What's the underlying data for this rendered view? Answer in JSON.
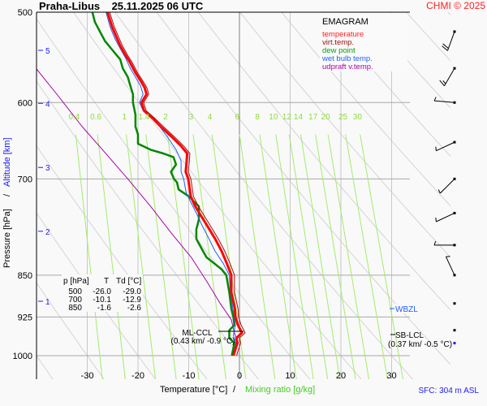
{
  "chart_data": {
    "type": "line",
    "subtype": "emagram",
    "title": "Praha-Libus    25.11.2025 06 UTC",
    "station": "Praha-Libus",
    "datetime": "25.11.2025 06 UTC",
    "copyright": "CHMI © 2025",
    "diagram_label": "EMAGRAM",
    "xlabel": "Temperature [°C]",
    "xlabel_sep": "/",
    "xlabel2": "Mixing ratio [g/kg]",
    "ylabel": "Pressure [hPa]",
    "ylabel_sep": "/",
    "ylabel2": "Altitude [km]",
    "xlim": [
      -38,
      39
    ],
    "ylim": [
      1050,
      500
    ],
    "yscale": "log",
    "grid": true,
    "x_ticks": [
      -30,
      -20,
      -10,
      0,
      10,
      20,
      30
    ],
    "y_ticks": [
      500,
      600,
      700,
      850,
      925,
      1000
    ],
    "altitude_ticks": [
      {
        "km": "5",
        "p": 540
      },
      {
        "km": "4",
        "p": 601
      },
      {
        "km": "3",
        "p": 684
      },
      {
        "km": "2",
        "p": 778
      },
      {
        "km": "1",
        "p": 896
      }
    ],
    "mixing_ratio_labels": [
      "0.4",
      "0.6",
      "1",
      "1.4",
      "2",
      "3",
      "4",
      "6",
      "8",
      "10",
      "12",
      "14",
      "17",
      "20",
      "25",
      "30"
    ],
    "mixing_ratio_values": [
      0.4,
      0.6,
      1,
      1.4,
      2,
      3,
      4,
      6,
      8,
      10,
      12,
      14,
      17,
      20,
      25,
      30
    ],
    "legend": [
      {
        "name": "temperature",
        "color": "#ff0000"
      },
      {
        "name": "virt.temp.",
        "color": "#a01010"
      },
      {
        "name": "dew point",
        "color": "#008800"
      },
      {
        "name": "wet bulb temp.",
        "color": "#2060ff"
      },
      {
        "name": "udpraft v.temp.",
        "color": "#aa00aa"
      }
    ],
    "series": [
      {
        "name": "temperature",
        "color": "#ff0000",
        "points": [
          [
            -1.2,
            1000
          ],
          [
            -0.4,
            975
          ],
          [
            -0.6,
            965
          ],
          [
            0.5,
            955
          ],
          [
            -0.3,
            940
          ],
          [
            -0.8,
            925
          ],
          [
            -0.9,
            910
          ],
          [
            -1.6,
            880
          ],
          [
            -1.6,
            850
          ],
          [
            -2.5,
            830
          ],
          [
            -3.5,
            810
          ],
          [
            -4.8,
            790
          ],
          [
            -6.3,
            770
          ],
          [
            -7.5,
            755
          ],
          [
            -8.7,
            740
          ],
          [
            -9.6,
            725
          ],
          [
            -10.1,
            700
          ],
          [
            -10.6,
            690
          ],
          [
            -10.4,
            675
          ],
          [
            -10.3,
            665
          ],
          [
            -11.5,
            655
          ],
          [
            -13.5,
            642
          ],
          [
            -15.5,
            630
          ],
          [
            -17.0,
            620
          ],
          [
            -18.8,
            610
          ],
          [
            -19.3,
            600
          ],
          [
            -18.3,
            590
          ],
          [
            -18.7,
            582
          ],
          [
            -19.4,
            575
          ],
          [
            -20.5,
            565
          ],
          [
            -21.7,
            552
          ],
          [
            -22.5,
            545
          ],
          [
            -23.5,
            535
          ],
          [
            -24.3,
            525
          ],
          [
            -25.1,
            515
          ],
          [
            -26.0,
            500
          ]
        ]
      },
      {
        "name": "virt.temp.",
        "color": "#a01010",
        "points": [
          [
            -0.9,
            1000
          ],
          [
            -0.1,
            975
          ],
          [
            -0.3,
            965
          ],
          [
            0.8,
            955
          ],
          [
            0.0,
            940
          ],
          [
            -0.5,
            925
          ],
          [
            -0.6,
            910
          ],
          [
            -1.3,
            880
          ],
          [
            -1.3,
            850
          ],
          [
            -2.2,
            830
          ],
          [
            -3.2,
            810
          ],
          [
            -4.5,
            790
          ],
          [
            -6.0,
            770
          ],
          [
            -7.2,
            755
          ],
          [
            -8.4,
            740
          ],
          [
            -9.4,
            725
          ],
          [
            -9.9,
            700
          ],
          [
            -10.4,
            690
          ],
          [
            -10.2,
            675
          ],
          [
            -10.1,
            665
          ],
          [
            -11.3,
            655
          ],
          [
            -13.3,
            642
          ],
          [
            -15.3,
            630
          ],
          [
            -16.9,
            620
          ],
          [
            -18.7,
            610
          ],
          [
            -19.2,
            600
          ],
          [
            -18.2,
            590
          ],
          [
            -18.6,
            582
          ],
          [
            -19.3,
            575
          ],
          [
            -20.4,
            565
          ],
          [
            -21.6,
            552
          ],
          [
            -22.4,
            545
          ],
          [
            -23.4,
            535
          ],
          [
            -24.2,
            525
          ],
          [
            -25.0,
            515
          ],
          [
            -25.9,
            500
          ]
        ]
      },
      {
        "name": "dew point",
        "color": "#008800",
        "points": [
          [
            -1.5,
            1000
          ],
          [
            -1.0,
            975
          ],
          [
            -2.0,
            965
          ],
          [
            -2.0,
            950
          ],
          [
            -1.0,
            940
          ],
          [
            -1.2,
            925
          ],
          [
            -1.6,
            910
          ],
          [
            -2.0,
            880
          ],
          [
            -2.6,
            850
          ],
          [
            -3.5,
            840
          ],
          [
            -5.0,
            830
          ],
          [
            -6.5,
            820
          ],
          [
            -7.5,
            805
          ],
          [
            -8.5,
            790
          ],
          [
            -8.5,
            775
          ],
          [
            -8.0,
            760
          ],
          [
            -8.0,
            748
          ],
          [
            -8.0,
            740
          ],
          [
            -10.0,
            725
          ],
          [
            -12.0,
            715
          ],
          [
            -12.3,
            705
          ],
          [
            -12.9,
            700
          ],
          [
            -13.5,
            690
          ],
          [
            -12.5,
            680
          ],
          [
            -13.0,
            670
          ],
          [
            -15.0,
            665
          ],
          [
            -17.5,
            660
          ],
          [
            -20.0,
            652
          ],
          [
            -20.0,
            640
          ],
          [
            -20.5,
            630
          ],
          [
            -20.5,
            615
          ],
          [
            -21.0,
            600
          ],
          [
            -21.0,
            590
          ],
          [
            -21.5,
            580
          ],
          [
            -22.0,
            570
          ],
          [
            -23.0,
            560
          ],
          [
            -23.5,
            550
          ],
          [
            -25.0,
            540
          ],
          [
            -26.5,
            530
          ],
          [
            -27.5,
            520
          ],
          [
            -28.5,
            510
          ],
          [
            -29.0,
            500
          ]
        ]
      },
      {
        "name": "wet bulb temp.",
        "color": "#2060ff",
        "points": [
          [
            -1.3,
            1000
          ],
          [
            -0.7,
            975
          ],
          [
            -1.2,
            960
          ],
          [
            -0.8,
            940
          ],
          [
            -1.0,
            925
          ],
          [
            -1.3,
            910
          ],
          [
            -1.8,
            880
          ],
          [
            -2.0,
            850
          ],
          [
            -3.2,
            830
          ],
          [
            -4.8,
            810
          ],
          [
            -6.0,
            790
          ],
          [
            -7.3,
            770
          ],
          [
            -8.5,
            750
          ],
          [
            -9.5,
            735
          ],
          [
            -10.5,
            720
          ],
          [
            -11.0,
            700
          ],
          [
            -11.5,
            690
          ],
          [
            -11.5,
            675
          ],
          [
            -12.5,
            660
          ],
          [
            -14.0,
            645
          ],
          [
            -15.7,
            630
          ],
          [
            -17.2,
            620
          ],
          [
            -19.0,
            610
          ],
          [
            -19.7,
            600
          ],
          [
            -19.0,
            590
          ],
          [
            -19.5,
            580
          ],
          [
            -20.5,
            570
          ],
          [
            -21.5,
            560
          ],
          [
            -22.5,
            548
          ],
          [
            -23.5,
            538
          ],
          [
            -24.5,
            528
          ],
          [
            -25.5,
            515
          ],
          [
            -26.3,
            500
          ]
        ]
      },
      {
        "name": "udpraft v.temp.",
        "color": "#aa00aa",
        "points": [
          [
            -0.3,
            975
          ],
          [
            -1.0,
            955
          ],
          [
            -1.6,
            930
          ],
          [
            -3.8,
            900
          ],
          [
            -6.5,
            860
          ],
          [
            -9.5,
            820
          ],
          [
            -13.5,
            780
          ],
          [
            -17.5,
            740
          ],
          [
            -22.0,
            700
          ],
          [
            -27.0,
            660
          ],
          [
            -31.0,
            630
          ],
          [
            -36.0,
            590
          ],
          [
            -41.5,
            550
          ],
          [
            -47.0,
            515
          ],
          [
            -49.5,
            500
          ]
        ]
      }
    ],
    "table": {
      "headers": [
        "p [hPa]",
        "T",
        "Td [°C]"
      ],
      "rows": [
        [
          "500",
          "-26.0",
          "-29.0"
        ],
        [
          "700",
          "-10.1",
          "-12.9"
        ],
        [
          "850",
          "-1.6",
          "-2.6"
        ]
      ]
    },
    "annotations": [
      {
        "label": "ML-CCL",
        "detail": "(0.43 km/ -0.9 °C)",
        "p": 957
      },
      {
        "label": "WBZL",
        "p": 900,
        "color": "#2060ff"
      },
      {
        "label": "SB-LCL",
        "detail": "(0.37 km/ -0.5 °C)",
        "p": 962
      }
    ],
    "wind_barbs": [
      {
        "p": 520,
        "direction_deg": 200,
        "speed_kt": 20
      },
      {
        "p": 560,
        "direction_deg": 210,
        "speed_kt": 15
      },
      {
        "p": 600,
        "direction_deg": 275,
        "speed_kt": 5
      },
      {
        "p": 650,
        "direction_deg": 245,
        "speed_kt": 5
      },
      {
        "p": 700,
        "direction_deg": 225,
        "speed_kt": 5
      },
      {
        "p": 750,
        "direction_deg": 245,
        "speed_kt": 5
      },
      {
        "p": 800,
        "direction_deg": 270,
        "speed_kt": 5
      },
      {
        "p": 850,
        "direction_deg": 335,
        "speed_kt": 5
      },
      {
        "p": 900,
        "direction_deg": 310,
        "speed_kt": 0
      },
      {
        "p": 950,
        "direction_deg": 0,
        "speed_kt": 0
      },
      {
        "p": 975,
        "direction_deg": 0,
        "speed_kt": 0,
        "surface": true
      }
    ],
    "surface_info": "SFC: 304 m ASL"
  }
}
